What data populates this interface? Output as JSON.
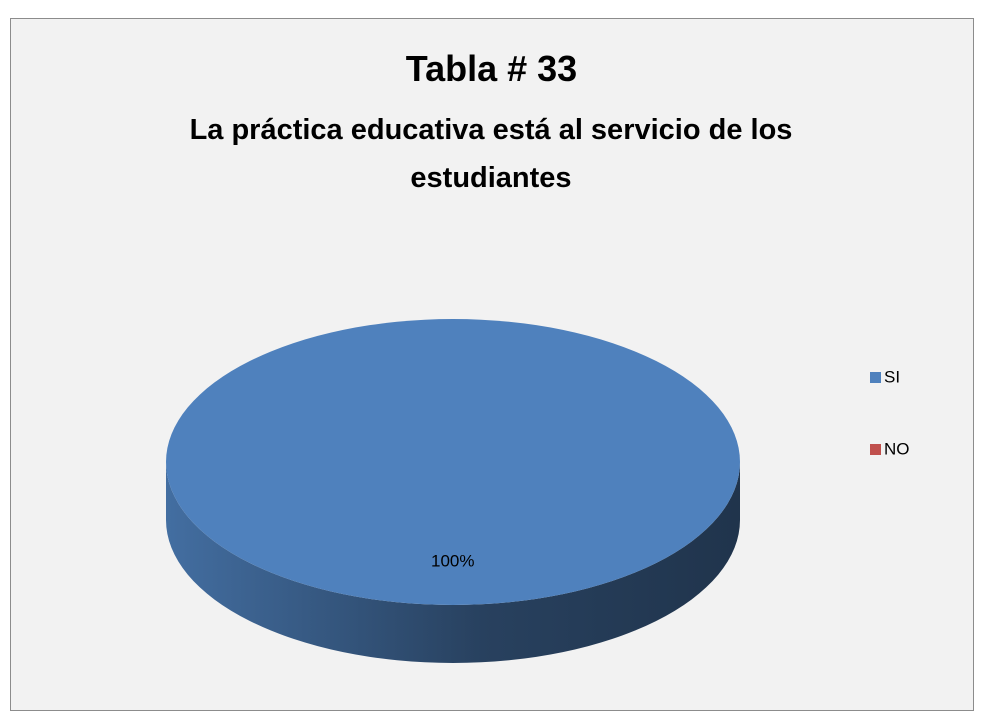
{
  "chart_data": {
    "type": "pie",
    "title": "Tabla # 33",
    "subtitle": "La práctica educativa está al servicio de los estudiantes",
    "categories": [
      "SI",
      "NO"
    ],
    "values": [
      100,
      0
    ],
    "value_labels": [
      "100%",
      null
    ],
    "colors": [
      "#4f81bd",
      "#c0504d"
    ],
    "legend": "right"
  }
}
